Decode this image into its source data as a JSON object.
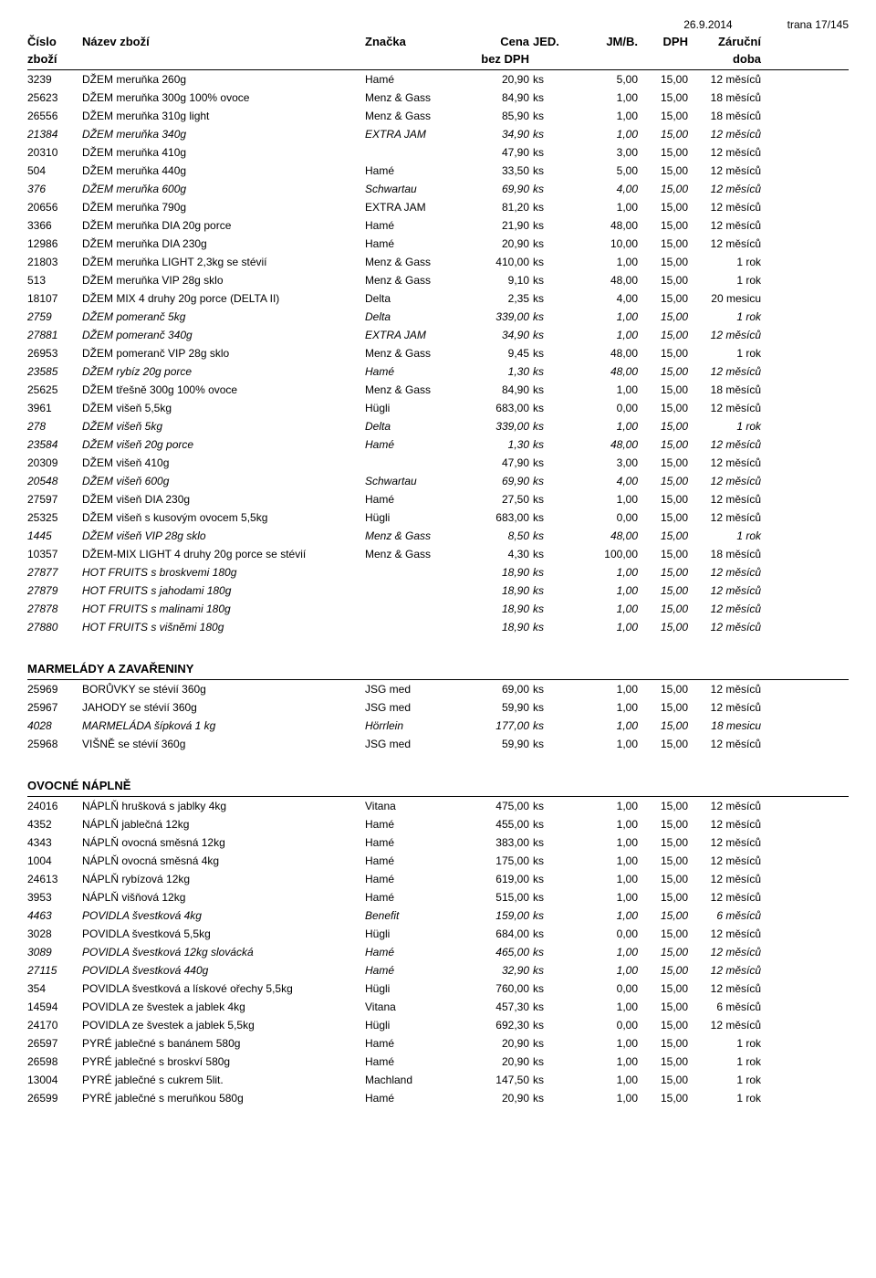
{
  "date": "26.9.2014",
  "page": "trana 17/145",
  "headers": {
    "cislo": "Číslo",
    "zbozi": "zboží",
    "nazev": "Název zboží",
    "znacka": "Značka",
    "cena": "Cena",
    "bezdph": "bez DPH",
    "jed": "JED.",
    "jmb": "JM/B.",
    "dph": "DPH",
    "zaruka": "Záruční",
    "doba": "doba"
  },
  "sections": [
    {
      "rows": [
        {
          "c": "3239",
          "n": "DŽEM meruňka 260g",
          "z": "Hamé",
          "p": "20,90",
          "j": "ks",
          "b": "5,00",
          "d": "15,00",
          "w": "12 měsíců",
          "i": false
        },
        {
          "c": "25623",
          "n": "DŽEM meruňka 300g 100% ovoce",
          "z": "Menz & Gass",
          "p": "84,90",
          "j": "ks",
          "b": "1,00",
          "d": "15,00",
          "w": "18 měsíců",
          "i": false
        },
        {
          "c": "26556",
          "n": "DŽEM meruňka 310g light",
          "z": "Menz & Gass",
          "p": "85,90",
          "j": "ks",
          "b": "1,00",
          "d": "15,00",
          "w": "18 měsíců",
          "i": false
        },
        {
          "c": "21384",
          "n": "DŽEM meruňka 340g",
          "z": "EXTRA JAM",
          "p": "34,90",
          "j": "ks",
          "b": "1,00",
          "d": "15,00",
          "w": "12 měsíců",
          "i": true
        },
        {
          "c": "20310",
          "n": "DŽEM meruňka 410g",
          "z": "",
          "p": "47,90",
          "j": "ks",
          "b": "3,00",
          "d": "15,00",
          "w": "12 měsíců",
          "i": false
        },
        {
          "c": "504",
          "n": "DŽEM meruňka 440g",
          "z": "Hamé",
          "p": "33,50",
          "j": "ks",
          "b": "5,00",
          "d": "15,00",
          "w": "12 měsíců",
          "i": false
        },
        {
          "c": "376",
          "n": "DŽEM meruňka 600g",
          "z": "Schwartau",
          "p": "69,90",
          "j": "ks",
          "b": "4,00",
          "d": "15,00",
          "w": "12 měsíců",
          "i": true
        },
        {
          "c": "20656",
          "n": "DŽEM meruňka 790g",
          "z": "EXTRA JAM",
          "p": "81,20",
          "j": "ks",
          "b": "1,00",
          "d": "15,00",
          "w": "12 měsíců",
          "i": false
        },
        {
          "c": "3366",
          "n": "DŽEM meruňka DIA 20g porce",
          "z": "Hamé",
          "p": "21,90",
          "j": "ks",
          "b": "48,00",
          "d": "15,00",
          "w": "12 měsíců",
          "i": false
        },
        {
          "c": "12986",
          "n": "DŽEM meruňka DIA 230g",
          "z": "Hamé",
          "p": "20,90",
          "j": "ks",
          "b": "10,00",
          "d": "15,00",
          "w": "12 měsíců",
          "i": false
        },
        {
          "c": "21803",
          "n": "DŽEM meruňka LIGHT 2,3kg se stévií",
          "z": "Menz & Gass",
          "p": "410,00",
          "j": "ks",
          "b": "1,00",
          "d": "15,00",
          "w": "1 rok",
          "i": false
        },
        {
          "c": "513",
          "n": "DŽEM meruňka VIP 28g sklo",
          "z": "Menz & Gass",
          "p": "9,10",
          "j": "ks",
          "b": "48,00",
          "d": "15,00",
          "w": "1 rok",
          "i": false
        },
        {
          "c": "18107",
          "n": "DŽEM MIX 4 druhy 20g porce (DELTA II)",
          "z": "Delta",
          "p": "2,35",
          "j": "ks",
          "b": "4,00",
          "d": "15,00",
          "w": "20 mesicu",
          "i": false
        },
        {
          "c": "2759",
          "n": "DŽEM pomeranč  5kg",
          "z": "Delta",
          "p": "339,00",
          "j": "ks",
          "b": "1,00",
          "d": "15,00",
          "w": "1 rok",
          "i": true
        },
        {
          "c": "27881",
          "n": "DŽEM pomeranč 340g",
          "z": "EXTRA JAM",
          "p": "34,90",
          "j": "ks",
          "b": "1,00",
          "d": "15,00",
          "w": "12 měsíců",
          "i": true
        },
        {
          "c": "26953",
          "n": "DŽEM pomeranč VIP 28g sklo",
          "z": "Menz & Gass",
          "p": "9,45",
          "j": "ks",
          "b": "48,00",
          "d": "15,00",
          "w": "1 rok",
          "i": false
        },
        {
          "c": "23585",
          "n": "DŽEM rybíz 20g porce",
          "z": "Hamé",
          "p": "1,30",
          "j": "ks",
          "b": "48,00",
          "d": "15,00",
          "w": "12 měsíců",
          "i": true
        },
        {
          "c": "25625",
          "n": "DŽEM třešně 300g 100% ovoce",
          "z": "Menz & Gass",
          "p": "84,90",
          "j": "ks",
          "b": "1,00",
          "d": "15,00",
          "w": "18 měsíců",
          "i": false
        },
        {
          "c": "3961",
          "n": "DŽEM višeň  5,5kg",
          "z": "Hügli",
          "p": "683,00",
          "j": "ks",
          "b": "0,00",
          "d": "15,00",
          "w": "12 měsíců",
          "i": false
        },
        {
          "c": "278",
          "n": "DŽEM višeň  5kg",
          "z": "Delta",
          "p": "339,00",
          "j": "ks",
          "b": "1,00",
          "d": "15,00",
          "w": "1 rok",
          "i": true
        },
        {
          "c": "23584",
          "n": "DŽEM višeň 20g porce",
          "z": "Hamé",
          "p": "1,30",
          "j": "ks",
          "b": "48,00",
          "d": "15,00",
          "w": "12 měsíců",
          "i": true
        },
        {
          "c": "20309",
          "n": "DŽEM višeň 410g",
          "z": "",
          "p": "47,90",
          "j": "ks",
          "b": "3,00",
          "d": "15,00",
          "w": "12 měsíců",
          "i": false
        },
        {
          "c": "20548",
          "n": "DŽEM višeň 600g",
          "z": "Schwartau",
          "p": "69,90",
          "j": "ks",
          "b": "4,00",
          "d": "15,00",
          "w": "12 měsíců",
          "i": true
        },
        {
          "c": "27597",
          "n": "DŽEM višeň DIA 230g",
          "z": "Hamé",
          "p": "27,50",
          "j": "ks",
          "b": "1,00",
          "d": "15,00",
          "w": "12 měsíců",
          "i": false
        },
        {
          "c": "25325",
          "n": "DŽEM višeň s kusovým ovocem  5,5kg",
          "z": "Hügli",
          "p": "683,00",
          "j": "ks",
          "b": "0,00",
          "d": "15,00",
          "w": "12 měsíců",
          "i": false
        },
        {
          "c": "1445",
          "n": "DŽEM višeň VIP 28g sklo",
          "z": "Menz & Gass",
          "p": "8,50",
          "j": "ks",
          "b": "48,00",
          "d": "15,00",
          "w": "1 rok",
          "i": true
        },
        {
          "c": "10357",
          "n": "DŽEM-MIX LIGHT 4 druhy 20g porce se stévií",
          "z": "Menz & Gass",
          "p": "4,30",
          "j": "ks",
          "b": "100,00",
          "d": "15,00",
          "w": "18 měsíců",
          "i": false
        },
        {
          "c": "27877",
          "n": "HOT FRUITS s broskvemi 180g",
          "z": "",
          "p": "18,90",
          "j": "ks",
          "b": "1,00",
          "d": "15,00",
          "w": "12 měsíců",
          "i": true
        },
        {
          "c": "27879",
          "n": "HOT FRUITS s jahodami 180g",
          "z": "",
          "p": "18,90",
          "j": "ks",
          "b": "1,00",
          "d": "15,00",
          "w": "12 měsíců",
          "i": true
        },
        {
          "c": "27878",
          "n": "HOT FRUITS s malinami 180g",
          "z": "",
          "p": "18,90",
          "j": "ks",
          "b": "1,00",
          "d": "15,00",
          "w": "12 měsíců",
          "i": true
        },
        {
          "c": "27880",
          "n": "HOT FRUITS s višněmi 180g",
          "z": "",
          "p": "18,90",
          "j": "ks",
          "b": "1,00",
          "d": "15,00",
          "w": "12 měsíců",
          "i": true
        }
      ]
    },
    {
      "title": "MARMELÁDY A ZAVAŘENINY",
      "rows": [
        {
          "c": "25969",
          "n": "BORŮVKY se stévií 360g",
          "z": "JSG med",
          "p": "69,00",
          "j": "ks",
          "b": "1,00",
          "d": "15,00",
          "w": "12 měsíců",
          "i": false
        },
        {
          "c": "25967",
          "n": "JAHODY se stévií 360g",
          "z": "JSG med",
          "p": "59,90",
          "j": "ks",
          "b": "1,00",
          "d": "15,00",
          "w": "12 měsíců",
          "i": false
        },
        {
          "c": "4028",
          "n": "MARMELÁDA šípková 1 kg",
          "z": "Hörrlein",
          "p": "177,00",
          "j": "ks",
          "b": "1,00",
          "d": "15,00",
          "w": "18 mesicu",
          "i": true
        },
        {
          "c": "25968",
          "n": "VIŠNĚ se stévií 360g",
          "z": "JSG med",
          "p": "59,90",
          "j": "ks",
          "b": "1,00",
          "d": "15,00",
          "w": "12 měsíců",
          "i": false
        }
      ]
    },
    {
      "title": "OVOCNÉ NÁPLNĚ",
      "rows": [
        {
          "c": "24016",
          "n": "NÁPLŇ hrušková s jablky 4kg",
          "z": "Vitana",
          "p": "475,00",
          "j": "ks",
          "b": "1,00",
          "d": "15,00",
          "w": "12 měsíců",
          "i": false
        },
        {
          "c": "4352",
          "n": "NÁPLŇ jablečná 12kg",
          "z": "Hamé",
          "p": "455,00",
          "j": "ks",
          "b": "1,00",
          "d": "15,00",
          "w": "12 měsíců",
          "i": false
        },
        {
          "c": "4343",
          "n": "NÁPLŇ ovocná směsná 12kg",
          "z": "Hamé",
          "p": "383,00",
          "j": "ks",
          "b": "1,00",
          "d": "15,00",
          "w": "12 měsíců",
          "i": false
        },
        {
          "c": "1004",
          "n": "NÁPLŇ ovocná směsná 4kg",
          "z": "Hamé",
          "p": "175,00",
          "j": "ks",
          "b": "1,00",
          "d": "15,00",
          "w": "12 měsíců",
          "i": false
        },
        {
          "c": "24613",
          "n": "NÁPLŇ rybízová 12kg",
          "z": "Hamé",
          "p": "619,00",
          "j": "ks",
          "b": "1,00",
          "d": "15,00",
          "w": "12 měsíců",
          "i": false
        },
        {
          "c": "3953",
          "n": "NÁPLŇ višňová 12kg",
          "z": "Hamé",
          "p": "515,00",
          "j": "ks",
          "b": "1,00",
          "d": "15,00",
          "w": "12 měsíců",
          "i": false
        },
        {
          "c": "4463",
          "n": "POVIDLA švestková  4kg",
          "z": "Benefit",
          "p": "159,00",
          "j": "ks",
          "b": "1,00",
          "d": "15,00",
          "w": "6 měsíců",
          "i": true
        },
        {
          "c": "3028",
          "n": "POVIDLA švestková  5,5kg",
          "z": "Hügli",
          "p": "684,00",
          "j": "ks",
          "b": "0,00",
          "d": "15,00",
          "w": "12 měsíců",
          "i": false
        },
        {
          "c": "3089",
          "n": "POVIDLA švestková 12kg slovácká",
          "z": "Hamé",
          "p": "465,00",
          "j": "ks",
          "b": "1,00",
          "d": "15,00",
          "w": "12 měsíců",
          "i": true
        },
        {
          "c": "27115",
          "n": "POVIDLA švestková 440g",
          "z": "Hamé",
          "p": "32,90",
          "j": "ks",
          "b": "1,00",
          "d": "15,00",
          "w": "12 měsíců",
          "i": true
        },
        {
          "c": "354",
          "n": "POVIDLA švestková a lískové ořechy 5,5kg",
          "z": "Hügli",
          "p": "760,00",
          "j": "ks",
          "b": "0,00",
          "d": "15,00",
          "w": "12 měsíců",
          "i": false
        },
        {
          "c": "14594",
          "n": "POVIDLA ze švestek a jablek  4kg",
          "z": "Vitana",
          "p": "457,30",
          "j": "ks",
          "b": "1,00",
          "d": "15,00",
          "w": "6 měsíců",
          "i": false
        },
        {
          "c": "24170",
          "n": "POVIDLA ze švestek a jablek 5,5kg",
          "z": "Hügli",
          "p": "692,30",
          "j": "ks",
          "b": "0,00",
          "d": "15,00",
          "w": "12 měsíců",
          "i": false
        },
        {
          "c": "26597",
          "n": "PYRÉ jablečné s banánem 580g",
          "z": "Hamé",
          "p": "20,90",
          "j": "ks",
          "b": "1,00",
          "d": "15,00",
          "w": "1 rok",
          "i": false
        },
        {
          "c": "26598",
          "n": "PYRÉ jablečné s broskví 580g",
          "z": "Hamé",
          "p": "20,90",
          "j": "ks",
          "b": "1,00",
          "d": "15,00",
          "w": "1 rok",
          "i": false
        },
        {
          "c": "13004",
          "n": "PYRÉ jablečné s cukrem 5lit.",
          "z": "Machland",
          "p": "147,50",
          "j": "ks",
          "b": "1,00",
          "d": "15,00",
          "w": "1 rok",
          "i": false
        },
        {
          "c": "26599",
          "n": "PYRÉ jablečné s meruňkou 580g",
          "z": "Hamé",
          "p": "20,90",
          "j": "ks",
          "b": "1,00",
          "d": "15,00",
          "w": "1 rok",
          "i": false
        }
      ]
    }
  ]
}
